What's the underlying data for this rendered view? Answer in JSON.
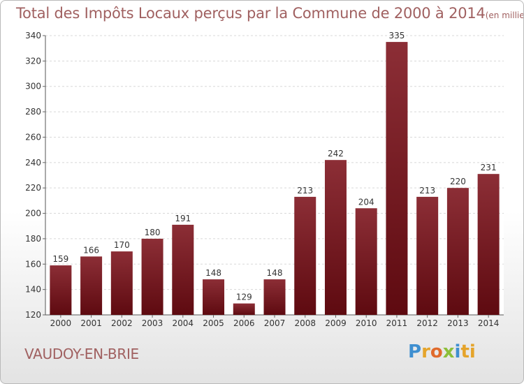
{
  "chart_data": {
    "type": "bar",
    "title": "Total des Impôts Locaux perçus par la Commune de 2000 à 2014",
    "subtitle": "(en milliers d'€)",
    "xlabel": "",
    "ylabel": "",
    "categories": [
      "2000",
      "2001",
      "2002",
      "2003",
      "2004",
      "2005",
      "2006",
      "2007",
      "2008",
      "2009",
      "2010",
      "2011",
      "2012",
      "2013",
      "2014"
    ],
    "values": [
      159,
      166,
      170,
      180,
      191,
      148,
      129,
      148,
      213,
      242,
      204,
      335,
      213,
      220,
      231
    ],
    "ylim": [
      120,
      340
    ],
    "yticks": [
      120,
      140,
      160,
      180,
      200,
      220,
      240,
      260,
      280,
      300,
      320,
      340
    ],
    "grid": true,
    "bar_color": "#7a1a22"
  },
  "footer": {
    "commune": "VAUDOY-EN-BRIE",
    "logo_letters": [
      "P",
      "r",
      "o",
      "x",
      "i",
      "ti"
    ]
  }
}
